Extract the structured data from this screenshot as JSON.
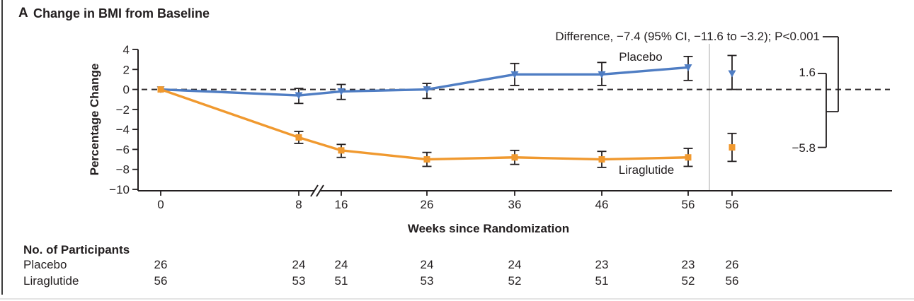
{
  "panel": {
    "label": "A",
    "title": "Change in BMI from Baseline"
  },
  "colors": {
    "placebo": "#4f7dc3",
    "liraglutide": "#f0992f",
    "ink": "#231f20",
    "separator": "#c9c9c9"
  },
  "chart_data": {
    "type": "line",
    "title": "Change in BMI from Baseline",
    "xlabel": "Weeks since Randomization",
    "ylabel": "Percentage Change",
    "ylim": [
      -10,
      4
    ],
    "ytick_labels": [
      "4",
      "2",
      "0",
      "−2",
      "−4",
      "−6",
      "−8",
      "−10"
    ],
    "ytick_values": [
      4,
      2,
      0,
      -2,
      -4,
      -6,
      -8,
      -10
    ],
    "x_weeks": [
      0,
      8,
      16,
      26,
      36,
      46,
      56
    ],
    "xtick_labels": [
      "0",
      "8",
      "16",
      "26",
      "36",
      "46",
      "56"
    ],
    "axis_break_between": [
      8,
      16
    ],
    "zero_line_dashed": true,
    "legend_position": "inline-curve-labels",
    "grid": false,
    "series": [
      {
        "name": "Placebo",
        "color": "#4f7dc3",
        "marker": "triangle-down",
        "values": [
          0,
          -0.6,
          -0.2,
          0.0,
          1.5,
          1.5,
          2.2
        ],
        "ci_low": [
          0,
          -1.4,
          -1.0,
          -0.9,
          0.4,
          0.4,
          0.9
        ],
        "ci_high": [
          0,
          0.1,
          0.5,
          0.6,
          2.6,
          2.7,
          3.3
        ],
        "observed_week56": {
          "value": 1.6,
          "ci_low": 0.0,
          "ci_high": 3.4
        }
      },
      {
        "name": "Liraglutide",
        "color": "#f0992f",
        "marker": "square",
        "values": [
          0,
          -4.8,
          -6.1,
          -7.0,
          -6.8,
          -7.0,
          -6.8
        ],
        "ci_low": [
          0,
          -5.4,
          -6.8,
          -7.7,
          -7.5,
          -7.8,
          -7.7
        ],
        "ci_high": [
          0,
          -4.2,
          -5.5,
          -6.3,
          -6.1,
          -6.2,
          -5.9
        ],
        "observed_week56": {
          "value": -5.8,
          "ci_low": -7.2,
          "ci_high": -4.4
        }
      }
    ],
    "annotations": {
      "difference": "Difference, −7.4 (95% CI, −11.6 to −3.2); P<0.001",
      "placebo_curve_label": "Placebo",
      "liraglutide_curve_label": "Liraglutide",
      "end_value_placebo": "1.6",
      "end_value_liraglutide": "−5.8",
      "observed_axis_label": "56"
    }
  },
  "participants": {
    "header": "No. of Participants",
    "rows": [
      {
        "label": "Placebo",
        "counts": [
          "26",
          "24",
          "24",
          "24",
          "24",
          "23",
          "23",
          "26"
        ]
      },
      {
        "label": "Liraglutide",
        "counts": [
          "56",
          "53",
          "51",
          "53",
          "52",
          "51",
          "52",
          "56"
        ]
      }
    ]
  }
}
